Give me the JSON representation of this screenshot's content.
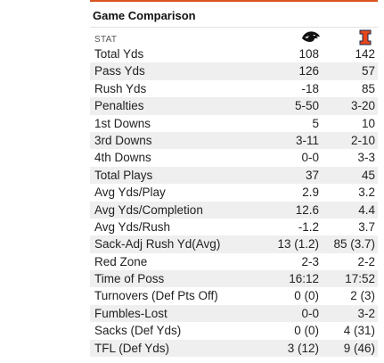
{
  "title": "Game Comparison",
  "stat_header": "STAT",
  "teams": [
    {
      "icon": "iowa-hawkeye-logo-icon",
      "color": "#111111"
    },
    {
      "icon": "illinois-block-i-logo-icon",
      "color": "#e8471c"
    }
  ],
  "rows": [
    {
      "stat": "Total Yds",
      "team1": "108",
      "team2": "142"
    },
    {
      "stat": "Pass Yds",
      "team1": "126",
      "team2": "57"
    },
    {
      "stat": "Rush Yds",
      "team1": "-18",
      "team2": "85"
    },
    {
      "stat": "Penalties",
      "team1": "5-50",
      "team2": "3-20"
    },
    {
      "stat": "1st Downs",
      "team1": "5",
      "team2": "10"
    },
    {
      "stat": "3rd Downs",
      "team1": "3-11",
      "team2": "2-10"
    },
    {
      "stat": "4th Downs",
      "team1": "0-0",
      "team2": "3-3"
    },
    {
      "stat": "Total Plays",
      "team1": "37",
      "team2": "45"
    },
    {
      "stat": "Avg Yds/Play",
      "team1": "2.9",
      "team2": "3.2"
    },
    {
      "stat": "Avg Yds/Completion",
      "team1": "12.6",
      "team2": "4.4"
    },
    {
      "stat": "Avg Yds/Rush",
      "team1": "-1.2",
      "team2": "3.7"
    },
    {
      "stat": "Sack-Adj Rush Yd(Avg)",
      "team1": "13 (1.2)",
      "team2": "85 (3.7)"
    },
    {
      "stat": "Red Zone",
      "team1": "2-3",
      "team2": "2-2"
    },
    {
      "stat": "Time of Poss",
      "team1": "16:12",
      "team2": "17:52"
    },
    {
      "stat": "Turnovers (Def Pts Off)",
      "team1": "0 (0)",
      "team2": "2 (3)"
    },
    {
      "stat": "Fumbles-Lost",
      "team1": "0-0",
      "team2": "3-2"
    },
    {
      "stat": "Sacks (Def Yds)",
      "team1": "0 (0)",
      "team2": "4 (31)"
    },
    {
      "stat": "TFL (Def Yds)",
      "team1": "3 (12)",
      "team2": "9 (46)"
    }
  ]
}
